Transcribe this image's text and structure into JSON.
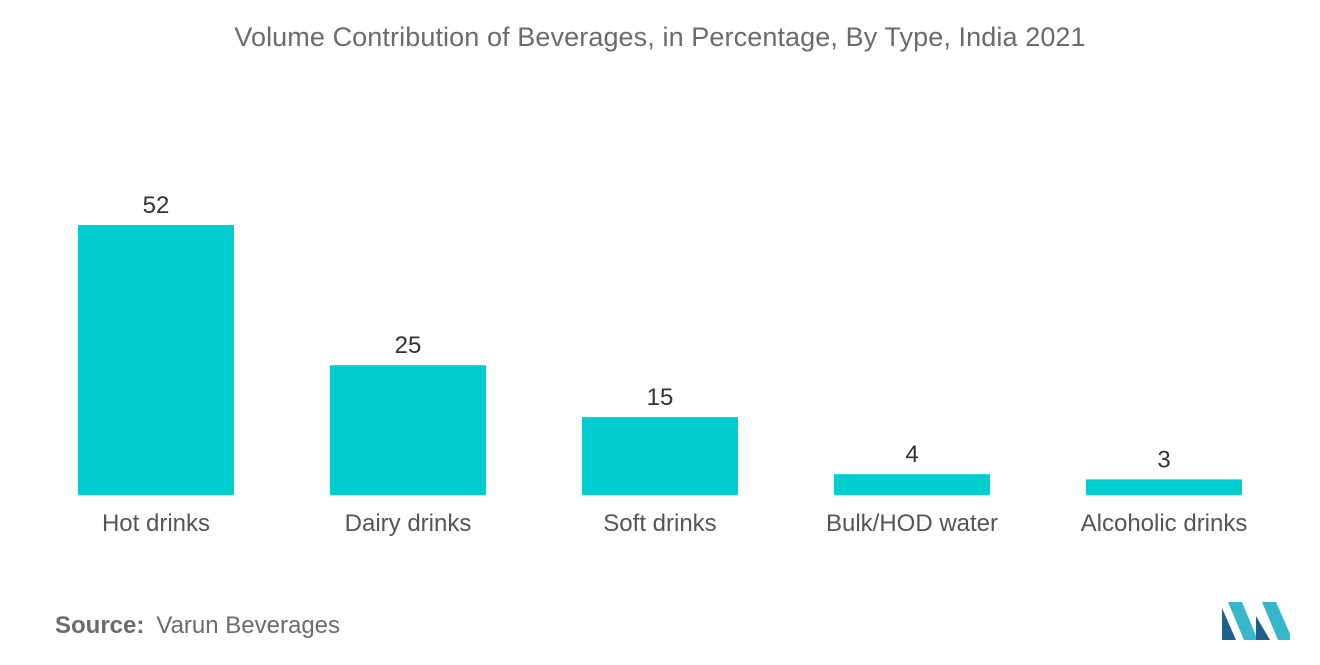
{
  "chart_data": {
    "type": "bar",
    "title": "Volume Contribution of Beverages, in Percentage, By Type, India 2021",
    "categories": [
      "Hot drinks",
      "Dairy drinks",
      "Soft drinks",
      "Bulk/HOD water",
      "Alcoholic drinks"
    ],
    "values": [
      52,
      25,
      15,
      4,
      3
    ],
    "xlabel": "",
    "ylabel": "",
    "ylim": [
      0,
      52
    ],
    "grid": false,
    "legend": "none",
    "bar_color": "#00CED1"
  },
  "source": {
    "label": "Source:",
    "text": "Varun Beverages"
  },
  "logo": {
    "icon": "mordor-intelligence-logo",
    "colors": [
      "#1F5F8B",
      "#35B6C9"
    ]
  }
}
